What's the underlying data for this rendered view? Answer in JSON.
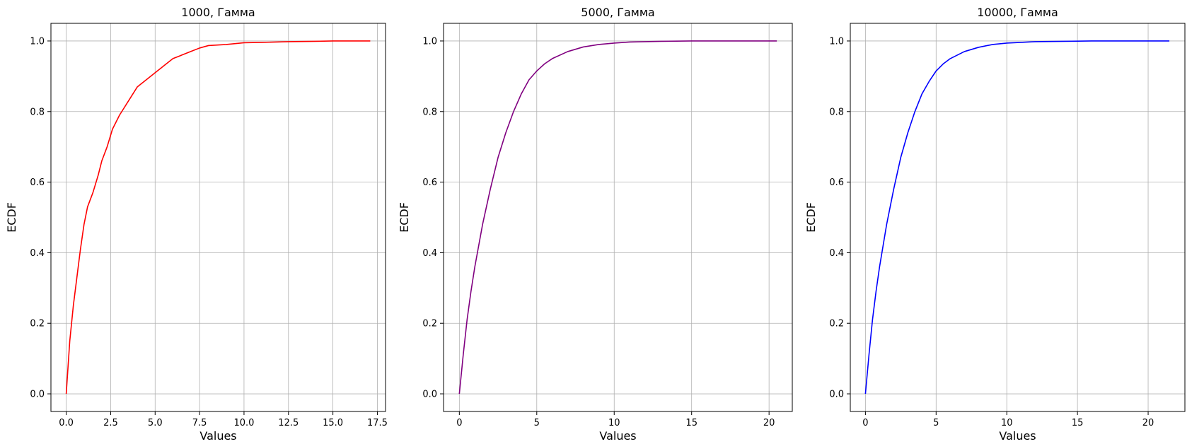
{
  "chart_data": [
    {
      "type": "line",
      "title": "1000, Гамма",
      "xlabel": "Values",
      "ylabel": "ECDF",
      "grid": true,
      "xlim": [
        -0.86,
        17.96
      ],
      "ylim": [
        -0.05,
        1.05
      ],
      "xticks": [
        0,
        2.5,
        5,
        7.5,
        10,
        12.5,
        15,
        17.5
      ],
      "xtick_labels": [
        "0.0",
        "2.5",
        "5.0",
        "7.5",
        "10.0",
        "12.5",
        "15.0",
        "17.5"
      ],
      "yticks": [
        0,
        0.2,
        0.4,
        0.6,
        0.8,
        1.0
      ],
      "ytick_labels": [
        "0.0",
        "0.2",
        "0.4",
        "0.6",
        "0.8",
        "1.0"
      ],
      "series": [
        {
          "color": "#ff0000",
          "x": [
            0,
            0.2,
            0.4,
            0.6,
            0.8,
            1.0,
            1.2,
            1.5,
            1.8,
            2.0,
            2.3,
            2.6,
            3.0,
            3.5,
            4.0,
            4.5,
            5.0,
            5.5,
            6.0,
            6.5,
            7.0,
            7.5,
            8.0,
            9.0,
            10.0,
            11.0,
            12.5,
            14.0,
            15.0,
            17.1
          ],
          "y": [
            0,
            0.15,
            0.25,
            0.33,
            0.41,
            0.48,
            0.53,
            0.57,
            0.62,
            0.66,
            0.7,
            0.75,
            0.79,
            0.83,
            0.87,
            0.89,
            0.91,
            0.93,
            0.95,
            0.96,
            0.97,
            0.98,
            0.987,
            0.99,
            0.995,
            0.996,
            0.998,
            0.999,
            1.0,
            1.0
          ]
        }
      ]
    },
    {
      "type": "line",
      "title": "5000, Гамма",
      "xlabel": "Values",
      "ylabel": "ECDF",
      "grid": true,
      "xlim": [
        -1.02,
        21.5
      ],
      "ylim": [
        -0.05,
        1.05
      ],
      "xticks": [
        0,
        5,
        10,
        15,
        20
      ],
      "xtick_labels": [
        "0",
        "5",
        "10",
        "15",
        "20"
      ],
      "yticks": [
        0,
        0.2,
        0.4,
        0.6,
        0.8,
        1.0
      ],
      "ytick_labels": [
        "0.0",
        "0.2",
        "0.4",
        "0.6",
        "0.8",
        "1.0"
      ],
      "series": [
        {
          "color": "#800080",
          "x": [
            0,
            0.25,
            0.5,
            0.75,
            1.0,
            1.5,
            2.0,
            2.5,
            3.0,
            3.5,
            4.0,
            4.5,
            5.0,
            5.5,
            6.0,
            7.0,
            8.0,
            9.0,
            10.0,
            11.0,
            12.0,
            13.0,
            15.0,
            20.5
          ],
          "y": [
            0,
            0.11,
            0.21,
            0.29,
            0.36,
            0.48,
            0.58,
            0.67,
            0.74,
            0.8,
            0.85,
            0.89,
            0.915,
            0.935,
            0.95,
            0.97,
            0.983,
            0.99,
            0.994,
            0.997,
            0.998,
            0.999,
            1.0,
            1.0
          ]
        }
      ]
    },
    {
      "type": "line",
      "title": "10000, Гамма",
      "xlabel": "Values",
      "ylabel": "ECDF",
      "grid": true,
      "xlim": [
        -1.07,
        22.6
      ],
      "ylim": [
        -0.05,
        1.05
      ],
      "xticks": [
        0,
        5,
        10,
        15,
        20
      ],
      "xtick_labels": [
        "0",
        "5",
        "10",
        "15",
        "20"
      ],
      "yticks": [
        0,
        0.2,
        0.4,
        0.6,
        0.8,
        1.0
      ],
      "ytick_labels": [
        "0.0",
        "0.2",
        "0.4",
        "0.6",
        "0.8",
        "1.0"
      ],
      "series": [
        {
          "color": "#0000ff",
          "x": [
            0,
            0.25,
            0.5,
            0.75,
            1.0,
            1.5,
            2.0,
            2.5,
            3.0,
            3.5,
            4.0,
            4.5,
            5.0,
            5.5,
            6.0,
            7.0,
            8.0,
            9.0,
            10.0,
            11.0,
            12.0,
            14.0,
            16.0,
            21.5
          ],
          "y": [
            0,
            0.11,
            0.21,
            0.29,
            0.36,
            0.48,
            0.58,
            0.67,
            0.74,
            0.8,
            0.85,
            0.885,
            0.915,
            0.935,
            0.95,
            0.97,
            0.982,
            0.99,
            0.994,
            0.996,
            0.998,
            0.999,
            1.0,
            1.0
          ]
        }
      ]
    }
  ]
}
